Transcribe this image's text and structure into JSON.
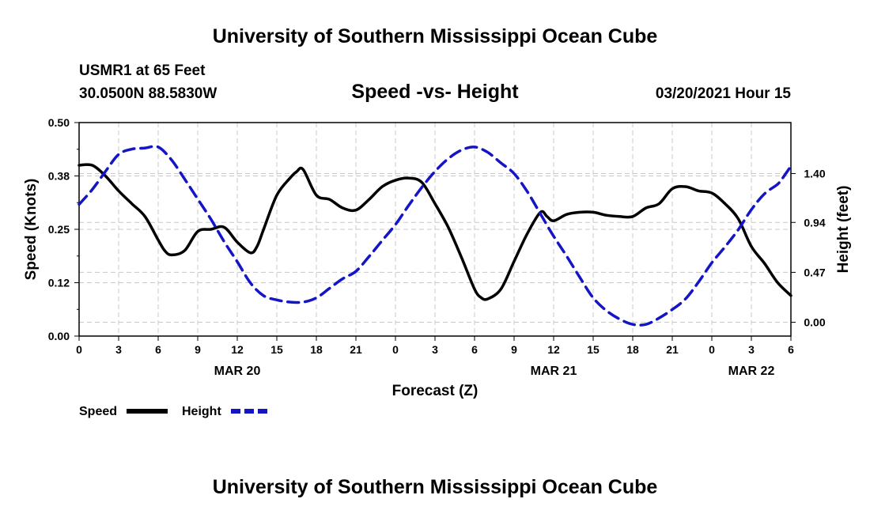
{
  "header": {
    "title": "University of Southern Mississippi Ocean Cube",
    "station": "USMR1 at 65 Feet",
    "coords": "30.0500N 88.5830W",
    "plot_title": "Speed -vs- Height",
    "datetime": "03/20/2021 Hour 15"
  },
  "footer": {
    "title": "University of Southern Mississippi Ocean Cube"
  },
  "colors": {
    "speed": "#000000",
    "height": "#1515c8",
    "grid": "#c8c8c8"
  },
  "chart_data": {
    "type": "line",
    "title": "Speed -vs- Height",
    "xlabel": "Forecast (Z)",
    "ylabel_left": "Speed (Knots)",
    "ylabel_right": "Height (feet)",
    "xlim": [
      0,
      54
    ],
    "ylim_left": [
      0,
      0.5
    ],
    "ylim_right": [
      -0.13,
      1.88
    ],
    "x_ticks": [
      0,
      3,
      6,
      9,
      12,
      15,
      18,
      21,
      24,
      27,
      30,
      33,
      36,
      39,
      42,
      45,
      48,
      51,
      54
    ],
    "x_tick_labels": [
      "0",
      "3",
      "6",
      "9",
      "12",
      "15",
      "18",
      "21",
      "0",
      "3",
      "6",
      "9",
      "12",
      "15",
      "18",
      "21",
      "0",
      "3",
      "6"
    ],
    "date_labels": [
      {
        "x": 12,
        "label": "MAR 20"
      },
      {
        "x": 36,
        "label": "MAR 21"
      },
      {
        "x": 51,
        "label": "MAR 22"
      }
    ],
    "left_ticks": [
      0.0,
      0.125,
      0.25,
      0.375,
      0.5
    ],
    "left_tick_labels": [
      "0.00",
      "0.12",
      "0.25",
      "0.38",
      "0.50"
    ],
    "right_ticks": [
      0.0,
      0.47,
      0.94,
      1.4
    ],
    "right_tick_labels": [
      "0.00",
      "0.47",
      "0.94",
      "1.40"
    ],
    "legend": [
      {
        "name": "Speed",
        "style": "solid"
      },
      {
        "name": "Height",
        "style": "dashed"
      }
    ],
    "series": [
      {
        "name": "Speed",
        "axis": "left",
        "style": "solid",
        "x": [
          0,
          1,
          2,
          3,
          4,
          5,
          6,
          6.5,
          7,
          8,
          9,
          10,
          11,
          12,
          13,
          13.5,
          14,
          15,
          16,
          16.5,
          17,
          18,
          19,
          20,
          21,
          22,
          23,
          24,
          25,
          26,
          27,
          28,
          29,
          30,
          30.5,
          31,
          32,
          33,
          34,
          35,
          35.5,
          36,
          37,
          38,
          39,
          40,
          41,
          42,
          43,
          44,
          45,
          46,
          47,
          48,
          49,
          50,
          51,
          52,
          53,
          54
        ],
        "values": [
          0.4,
          0.4,
          0.375,
          0.34,
          0.31,
          0.28,
          0.225,
          0.2,
          0.19,
          0.2,
          0.245,
          0.25,
          0.255,
          0.22,
          0.195,
          0.21,
          0.25,
          0.33,
          0.37,
          0.385,
          0.39,
          0.33,
          0.32,
          0.3,
          0.295,
          0.32,
          0.35,
          0.365,
          0.37,
          0.36,
          0.31,
          0.255,
          0.185,
          0.11,
          0.09,
          0.087,
          0.11,
          0.175,
          0.24,
          0.29,
          0.28,
          0.27,
          0.285,
          0.29,
          0.29,
          0.283,
          0.28,
          0.28,
          0.3,
          0.31,
          0.345,
          0.35,
          0.34,
          0.335,
          0.31,
          0.275,
          0.21,
          0.17,
          0.125,
          0.095
        ]
      },
      {
        "name": "Height",
        "axis": "right",
        "style": "dashed",
        "x": [
          0,
          1,
          2,
          3,
          4,
          5,
          6,
          7,
          8,
          9,
          10,
          11,
          12,
          13,
          14,
          15,
          16,
          17,
          18,
          19,
          20,
          21,
          22,
          23,
          24,
          25,
          26,
          27,
          28,
          29,
          30,
          31,
          32,
          33,
          34,
          35,
          36,
          37,
          38,
          39,
          40,
          41,
          42,
          43,
          44,
          45,
          46,
          47,
          48,
          49,
          50,
          51,
          52,
          53,
          53.5,
          54
        ],
        "values": [
          1.11,
          1.25,
          1.42,
          1.58,
          1.63,
          1.64,
          1.65,
          1.53,
          1.35,
          1.16,
          0.97,
          0.76,
          0.57,
          0.37,
          0.25,
          0.21,
          0.19,
          0.19,
          0.23,
          0.32,
          0.41,
          0.48,
          0.62,
          0.77,
          0.92,
          1.1,
          1.27,
          1.42,
          1.54,
          1.62,
          1.65,
          1.6,
          1.5,
          1.4,
          1.23,
          1.02,
          0.81,
          0.62,
          0.42,
          0.23,
          0.11,
          0.03,
          -0.02,
          -0.02,
          0.04,
          0.12,
          0.22,
          0.38,
          0.56,
          0.71,
          0.87,
          1.06,
          1.21,
          1.3,
          1.38,
          1.47
        ]
      }
    ]
  }
}
